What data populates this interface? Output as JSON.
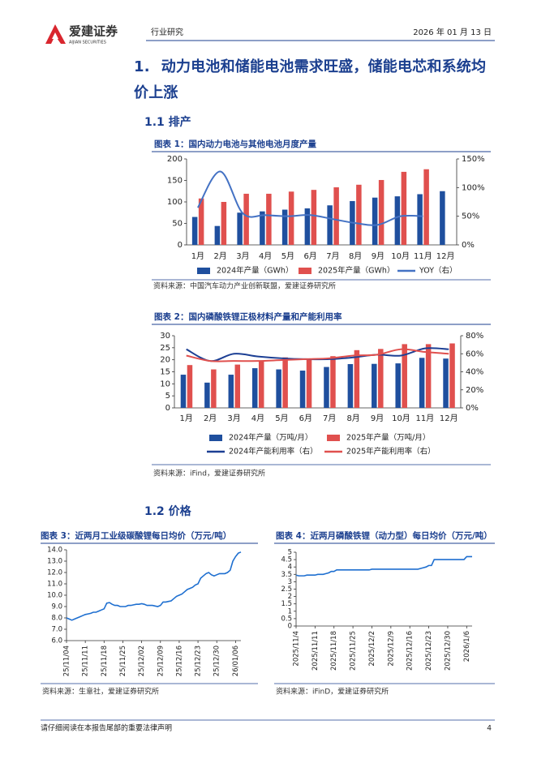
{
  "header": {
    "brand": "爱建证券",
    "brand_en": "AIJIAN SECURITIES",
    "section": "行业研究",
    "date": "2026 年 01 月 13 日"
  },
  "heading": {
    "number": "1.",
    "text": "动力电池和储能电池需求旺盛，储能电芯和系统均价上涨"
  },
  "subheadings": [
    "1.1 排产",
    "1.2 价格"
  ],
  "footer": {
    "notice": "请仔细阅读在本报告尾部的重要法律声明",
    "page": "4"
  },
  "chart_data": [
    {
      "type": "bar",
      "title": "图表 1：国内动力电池与其他电池月度产量",
      "source": "资料来源：中国汽车动力产业创新联盟，爱建证券研究所",
      "categories": [
        "1月",
        "2月",
        "3月",
        "4月",
        "5月",
        "6月",
        "7月",
        "8月",
        "9月",
        "10月",
        "11月",
        "12月"
      ],
      "series": [
        {
          "name": "2024年产量（GWh）",
          "color": "#1f4f9e",
          "values": [
            65,
            44,
            75,
            78,
            82,
            85,
            92,
            102,
            110,
            113,
            118,
            125
          ]
        },
        {
          "name": "2025年产量（GWh）",
          "color": "#e0504e",
          "values": [
            108,
            100,
            119,
            119,
            124,
            128,
            134,
            140,
            151,
            170,
            176,
            null
          ]
        },
        {
          "name": "YOY（右）",
          "color": "#4472c4",
          "axis": "y2",
          "values": [
            65,
            128,
            55,
            52,
            50,
            52,
            45,
            38,
            35,
            50,
            50,
            null
          ]
        }
      ],
      "ylim": [
        0,
        200
      ],
      "yticks": [
        0,
        50,
        100,
        150,
        200
      ],
      "y2lim": [
        0,
        150
      ],
      "y2ticks": [
        {
          "value": 0,
          "label": "0%"
        },
        {
          "value": 50,
          "label": "50%"
        },
        {
          "value": 100,
          "label": "100%"
        },
        {
          "value": 150,
          "label": "150%"
        }
      ],
      "smooth": true,
      "grid": false
    },
    {
      "type": "bar",
      "title": "图表 2：国内磷酸铁锂正极材料产量和产能利用率",
      "source": "资料来源：iFind，爱建证券研究所",
      "categories": [
        "1月",
        "2月",
        "3月",
        "4月",
        "5月",
        "6月",
        "7月",
        "8月",
        "9月",
        "10月",
        "11月",
        "12月"
      ],
      "series": [
        {
          "name": "2024年产量（万吨/月）",
          "color": "#1f4f9e",
          "values": [
            13.8,
            10.5,
            13.8,
            16.5,
            16.0,
            15.5,
            17.0,
            18.2,
            18.3,
            18.5,
            20.8,
            20.5
          ]
        },
        {
          "name": "2025年产量（万吨/月）",
          "color": "#e0504e",
          "values": [
            17.8,
            16.0,
            18.0,
            19.7,
            21.0,
            20.5,
            21.5,
            24.0,
            24.5,
            26.5,
            26.5,
            26.8
          ]
        },
        {
          "name": "2024年产能利用率（右）",
          "color": "#1c3f94",
          "axis": "y2",
          "values": [
            65,
            52,
            60,
            57,
            55,
            54,
            54,
            56,
            59,
            58,
            66,
            65
          ]
        },
        {
          "name": "2025年产能利用率（右）",
          "color": "#e0504e",
          "axis": "y2",
          "values": [
            58,
            52,
            52,
            52,
            53,
            54,
            55,
            58,
            59,
            65,
            62,
            60
          ]
        }
      ],
      "ylim": [
        0,
        30
      ],
      "yticks": [
        0,
        5,
        10,
        15,
        20,
        25,
        30
      ],
      "y2lim": [
        0,
        80
      ],
      "y2ticks": [
        {
          "value": 0,
          "label": "0%"
        },
        {
          "value": 20,
          "label": "20%"
        },
        {
          "value": 40,
          "label": "40%"
        },
        {
          "value": 60,
          "label": "60%"
        },
        {
          "value": 80,
          "label": "80%"
        }
      ],
      "smooth": true,
      "grid": false
    },
    {
      "type": "line",
      "title": "图表 3：近两月工业级碳酸锂每日均价（万元/吨）",
      "source": "资料来源：生意社，爱建证券研究所",
      "categories": [
        "25/11/04",
        null,
        null,
        null,
        null,
        null,
        null,
        "25/11/11",
        null,
        null,
        null,
        null,
        null,
        null,
        "25/11/18",
        null,
        null,
        null,
        null,
        null,
        null,
        "25/11/25",
        null,
        null,
        null,
        null,
        null,
        null,
        "25/12/02",
        null,
        null,
        null,
        null,
        null,
        null,
        "25/12/09",
        null,
        null,
        null,
        null,
        null,
        null,
        "25/12/16",
        null,
        null,
        null,
        null,
        null,
        null,
        "25/12/23",
        null,
        null,
        null,
        null,
        null,
        null,
        "25/12/30",
        null,
        null,
        null,
        null,
        null,
        null,
        "26/01/06",
        null,
        null
      ],
      "series": [
        {
          "name": "工业级碳酸锂",
          "color": "#1e6fd0",
          "values": [
            8.0,
            7.9,
            7.8,
            7.9,
            8.0,
            8.1,
            8.2,
            8.3,
            8.35,
            8.4,
            8.5,
            8.5,
            8.6,
            8.7,
            8.8,
            9.3,
            9.35,
            9.2,
            9.1,
            9.1,
            9.0,
            9.0,
            9.0,
            9.1,
            9.1,
            9.15,
            9.2,
            9.2,
            9.25,
            9.2,
            9.1,
            9.1,
            9.1,
            9.05,
            9.0,
            9.1,
            9.4,
            9.4,
            9.45,
            9.5,
            9.7,
            9.9,
            10.0,
            10.1,
            10.3,
            10.5,
            10.6,
            10.7,
            10.9,
            11.0,
            11.5,
            11.7,
            11.9,
            12.0,
            11.8,
            11.7,
            11.8,
            11.9,
            11.9,
            11.9,
            12.0,
            12.2,
            13.0,
            13.4,
            13.7,
            13.8
          ]
        }
      ],
      "ylim": [
        6,
        14
      ],
      "yticks": [
        {
          "value": 6,
          "label": "6.0"
        },
        {
          "value": 7,
          "label": "7.0"
        },
        {
          "value": 8,
          "label": "8.0"
        },
        {
          "value": 9,
          "label": "9.0"
        },
        {
          "value": 10,
          "label": "10.0"
        },
        {
          "value": 11,
          "label": "11.0"
        },
        {
          "value": 12,
          "label": "12.0"
        },
        {
          "value": 13,
          "label": "13.0"
        },
        {
          "value": 14,
          "label": "14.0"
        }
      ],
      "grid": false
    },
    {
      "type": "line",
      "title": "图表 4：近两月磷酸铁锂（动力型）每日均价（万元/吨）",
      "source": "资料来源：iFinD，爱建证券研究所",
      "categories": [
        "2025/11/4",
        null,
        null,
        null,
        null,
        null,
        null,
        "2025/11/11",
        null,
        null,
        null,
        null,
        null,
        null,
        "2025/11/18",
        null,
        null,
        null,
        null,
        null,
        null,
        "2025/11/25",
        null,
        null,
        null,
        null,
        null,
        null,
        "2025/12/2",
        null,
        null,
        null,
        null,
        null,
        null,
        "2025/12/9",
        null,
        null,
        null,
        null,
        null,
        null,
        "2025/12/16",
        null,
        null,
        null,
        null,
        null,
        null,
        "2025/12/23",
        null,
        null,
        null,
        null,
        null,
        null,
        "2025/12/30",
        null,
        null,
        null,
        null,
        null,
        null,
        "2026/1/6",
        null,
        null
      ],
      "series": [
        {
          "name": "磷酸铁锂（动力型）",
          "color": "#1e6fd0",
          "values": [
            3.45,
            3.4,
            3.4,
            3.4,
            3.45,
            3.45,
            3.45,
            3.45,
            3.5,
            3.5,
            3.5,
            3.55,
            3.6,
            3.7,
            3.7,
            3.8,
            3.8,
            3.8,
            3.8,
            3.8,
            3.8,
            3.8,
            3.8,
            3.8,
            3.8,
            3.8,
            3.8,
            3.8,
            3.85,
            3.85,
            3.85,
            3.85,
            3.85,
            3.85,
            3.85,
            3.85,
            3.85,
            3.85,
            3.85,
            3.85,
            3.85,
            3.85,
            3.85,
            3.85,
            3.85,
            3.85,
            3.9,
            3.95,
            4.0,
            4.1,
            4.1,
            4.5,
            4.5,
            4.5,
            4.5,
            4.5,
            4.5,
            4.5,
            4.5,
            4.5,
            4.5,
            4.5,
            4.5,
            4.7,
            4.7,
            4.7
          ]
        }
      ],
      "ylim": [
        0,
        5
      ],
      "yticks": [
        0,
        0.5,
        1,
        1.5,
        2,
        2.5,
        3,
        3.5,
        4,
        4.5,
        5
      ],
      "grid": false
    }
  ]
}
